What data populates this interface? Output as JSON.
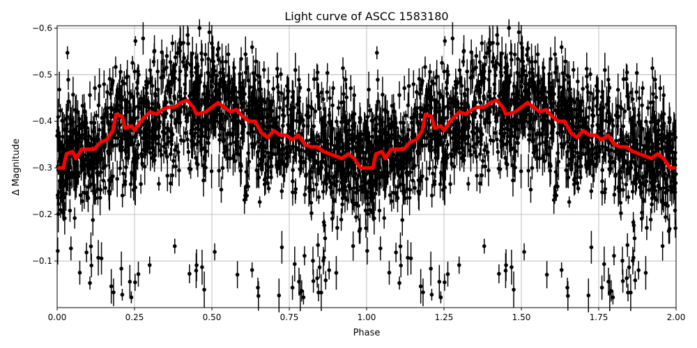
{
  "chart_data": {
    "type": "scatter",
    "title": "Light curve of ASCC 1583180",
    "xlabel": "Phase",
    "ylabel": "Δ Magnitude",
    "xlim": [
      0,
      2
    ],
    "ylim": [
      -0.605,
      0.0
    ],
    "y_inverted": true,
    "grid": true,
    "xticks": [
      "0.00",
      "0.25",
      "0.50",
      "0.75",
      "1.00",
      "1.25",
      "1.50",
      "1.75",
      "2.00"
    ],
    "xtick_values": [
      0,
      0.25,
      0.5,
      0.75,
      1,
      1.25,
      1.5,
      1.75,
      2
    ],
    "yticks": [
      "−0.6",
      "−0.5",
      "−0.4",
      "−0.3",
      "−0.2",
      "−0.1"
    ],
    "ytick_values": [
      -0.6,
      -0.5,
      -0.4,
      -0.3,
      -0.2,
      -0.1
    ],
    "points_color": "#000000",
    "curve_color": "#ff0000",
    "binned_curve": {
      "phase": [
        0.0,
        0.02,
        0.03,
        0.05,
        0.06,
        0.08,
        0.1,
        0.12,
        0.14,
        0.16,
        0.18,
        0.19,
        0.21,
        0.22,
        0.24,
        0.25,
        0.27,
        0.3,
        0.32,
        0.34,
        0.36,
        0.38,
        0.4,
        0.42,
        0.44,
        0.45,
        0.48,
        0.5,
        0.52,
        0.54,
        0.56,
        0.58,
        0.6,
        0.62,
        0.64,
        0.66,
        0.68,
        0.7,
        0.72,
        0.74,
        0.76,
        0.78,
        0.8,
        0.82,
        0.84,
        0.86,
        0.88,
        0.9,
        0.92,
        0.94,
        0.96,
        0.98,
        1.0
      ],
      "mag": [
        -0.3,
        -0.3,
        -0.33,
        -0.335,
        -0.32,
        -0.34,
        -0.34,
        -0.34,
        -0.355,
        -0.36,
        -0.38,
        -0.415,
        -0.41,
        -0.385,
        -0.39,
        -0.38,
        -0.4,
        -0.42,
        -0.415,
        -0.425,
        -0.43,
        -0.43,
        -0.44,
        -0.445,
        -0.43,
        -0.415,
        -0.42,
        -0.43,
        -0.44,
        -0.43,
        -0.42,
        -0.425,
        -0.41,
        -0.4,
        -0.4,
        -0.375,
        -0.365,
        -0.38,
        -0.37,
        -0.37,
        -0.36,
        -0.37,
        -0.35,
        -0.345,
        -0.345,
        -0.335,
        -0.33,
        -0.325,
        -0.32,
        -0.33,
        -0.32,
        -0.3,
        -0.3
      ]
    }
  }
}
